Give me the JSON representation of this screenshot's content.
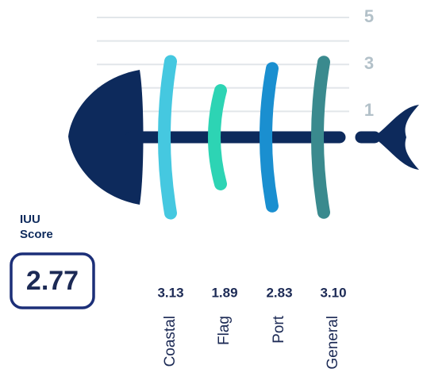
{
  "chart_data": {
    "type": "fishbone",
    "categories": [
      "Coastal",
      "Flag",
      "Port",
      "General"
    ],
    "values": [
      3.13,
      1.89,
      2.83,
      3.1
    ],
    "value_labels": [
      "3.13",
      "1.89",
      "2.83",
      "3.10"
    ],
    "colors": [
      "#45c8e0",
      "#2dd4b4",
      "#1a8fd0",
      "#3a8a8e"
    ],
    "ylim": [
      0,
      5
    ],
    "yticks": [
      1,
      3,
      5
    ],
    "yminorticks": [
      2,
      4
    ],
    "grid": true,
    "score_label": [
      "IUU",
      "Score"
    ],
    "score": 2.77
  }
}
